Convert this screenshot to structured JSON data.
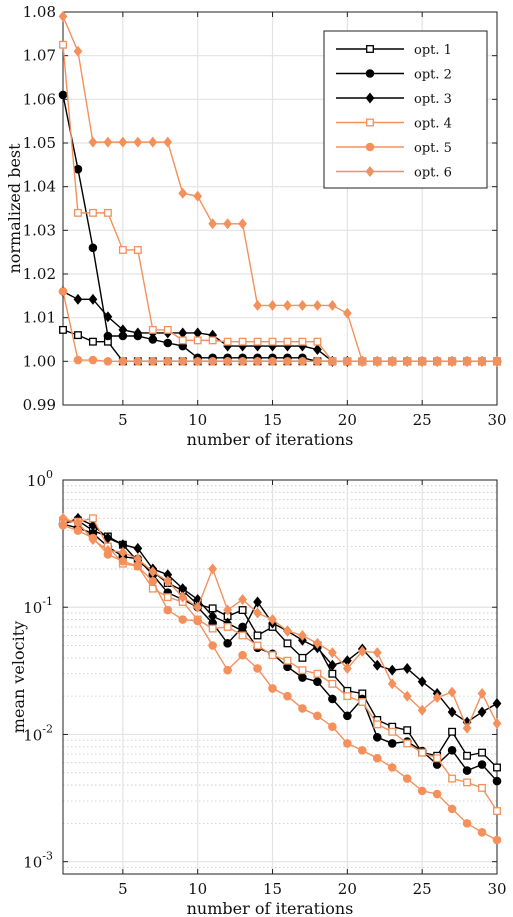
{
  "chart_data": [
    {
      "type": "line",
      "title": "",
      "xlabel": "number of iterations",
      "ylabel": "normalized best",
      "xlim": [
        1,
        30
      ],
      "ylim": [
        0.99,
        1.08
      ],
      "yscale": "linear",
      "xticks": [
        5,
        10,
        15,
        20,
        25,
        30
      ],
      "yticks": [
        0.99,
        1.0,
        1.01,
        1.02,
        1.03,
        1.04,
        1.05,
        1.06,
        1.07,
        1.08
      ],
      "ytick_labels": [
        "0.99",
        "1.00",
        "1.01",
        "1.02",
        "1.03",
        "1.04",
        "1.05",
        "1.06",
        "1.07",
        "1.08"
      ],
      "grid": true,
      "legend_position": "top-right",
      "x": [
        1,
        2,
        3,
        4,
        5,
        6,
        7,
        8,
        9,
        10,
        11,
        12,
        13,
        14,
        15,
        16,
        17,
        18,
        19,
        20,
        21,
        22,
        23,
        24,
        25,
        26,
        27,
        28,
        29,
        30
      ],
      "series": [
        {
          "name": "opt. 1",
          "color": "#000000",
          "marker": "square-open",
          "values": [
            1.0072,
            1.006,
            1.0045,
            1.0045,
            1.0,
            1.0,
            1.0,
            1.0,
            1.0,
            1.0,
            1.0,
            1.0,
            1.0,
            1.0,
            1.0,
            1.0,
            1.0,
            1.0,
            1.0,
            1.0,
            1.0,
            1.0,
            1.0,
            1.0,
            1.0,
            1.0,
            1.0,
            1.0,
            1.0,
            1.0
          ]
        },
        {
          "name": "opt. 2",
          "color": "#000000",
          "marker": "circle-filled",
          "values": [
            1.061,
            1.044,
            1.026,
            1.0058,
            1.0058,
            1.0058,
            1.005,
            1.0042,
            1.0035,
            1.0008,
            1.0008,
            1.0008,
            1.0008,
            1.0008,
            1.0008,
            1.0008,
            1.0008,
            1.0,
            1.0,
            1.0,
            1.0,
            1.0,
            1.0,
            1.0,
            1.0,
            1.0,
            1.0,
            1.0,
            1.0,
            1.0
          ]
        },
        {
          "name": "opt. 3",
          "color": "#000000",
          "marker": "diamond-filled",
          "values": [
            1.016,
            1.0142,
            1.0142,
            1.0102,
            1.0072,
            1.0065,
            1.0065,
            1.0065,
            1.0065,
            1.0065,
            1.006,
            1.0035,
            1.0035,
            1.0035,
            1.0035,
            1.0035,
            1.0035,
            1.0027,
            1.0,
            1.0,
            1.0,
            1.0,
            1.0,
            1.0,
            1.0,
            1.0,
            1.0,
            1.0,
            1.0,
            1.0
          ]
        },
        {
          "name": "opt. 4",
          "color": "#F4905C",
          "marker": "square-open",
          "values": [
            1.0725,
            1.034,
            1.034,
            1.034,
            1.0255,
            1.0255,
            1.0072,
            1.0072,
            1.0048,
            1.0048,
            1.0048,
            1.0045,
            1.0045,
            1.0045,
            1.0045,
            1.0045,
            1.0045,
            1.0045,
            1.0,
            1.0,
            1.0,
            1.0,
            1.0,
            1.0,
            1.0,
            1.0,
            1.0,
            1.0,
            1.0,
            1.0
          ]
        },
        {
          "name": "opt. 5",
          "color": "#F4905C",
          "marker": "circle-filled",
          "values": [
            1.016,
            1.0003,
            1.0003,
            1.0,
            1.0,
            1.0,
            1.0,
            1.0,
            1.0,
            1.0,
            1.0,
            1.0,
            1.0,
            1.0,
            1.0,
            1.0,
            1.0,
            1.0,
            1.0,
            1.0,
            1.0,
            1.0,
            1.0,
            1.0,
            1.0,
            1.0,
            1.0,
            1.0,
            1.0,
            1.0
          ]
        },
        {
          "name": "opt. 6",
          "color": "#F4905C",
          "marker": "diamond-filled",
          "values": [
            1.079,
            1.071,
            1.0502,
            1.0502,
            1.0502,
            1.0502,
            1.0502,
            1.0502,
            1.0385,
            1.0378,
            1.0315,
            1.0315,
            1.0315,
            1.0128,
            1.0128,
            1.0128,
            1.0128,
            1.0128,
            1.0128,
            1.011,
            1.0,
            1.0,
            1.0,
            1.0,
            1.0,
            1.0,
            1.0,
            1.0,
            1.0,
            1.0
          ]
        }
      ]
    },
    {
      "type": "line",
      "title": "",
      "xlabel": "number of iterations",
      "ylabel": "mean velocity",
      "xlim": [
        1,
        30
      ],
      "ylim": [
        0.0008,
        1
      ],
      "yscale": "log",
      "xticks": [
        5,
        10,
        15,
        20,
        25,
        30
      ],
      "yticks": [
        0.001,
        0.01,
        0.1,
        1
      ],
      "ytick_labels": [
        [
          "10",
          "-3"
        ],
        [
          "10",
          "-2"
        ],
        [
          "10",
          "-1"
        ],
        [
          "10",
          "0"
        ]
      ],
      "grid": true,
      "minor_grid": true,
      "legend_position": "none",
      "x": [
        1,
        2,
        3,
        4,
        5,
        6,
        7,
        8,
        9,
        10,
        11,
        12,
        13,
        14,
        15,
        16,
        17,
        18,
        19,
        20,
        21,
        22,
        23,
        24,
        25,
        26,
        27,
        28,
        29,
        30
      ],
      "series": [
        {
          "name": "opt. 1",
          "color": "#000000",
          "marker": "square-open",
          "values": [
            0.46,
            0.48,
            0.4,
            0.36,
            0.31,
            0.23,
            0.19,
            0.155,
            0.135,
            0.105,
            0.098,
            0.085,
            0.095,
            0.06,
            0.07,
            0.052,
            0.04,
            0.05,
            0.03,
            0.022,
            0.021,
            0.013,
            0.0115,
            0.0108,
            0.0072,
            0.0068,
            0.0105,
            0.0068,
            0.0072,
            0.0055
          ]
        },
        {
          "name": "opt. 2",
          "color": "#000000",
          "marker": "circle-filled",
          "values": [
            0.45,
            0.42,
            0.38,
            0.3,
            0.25,
            0.24,
            0.18,
            0.13,
            0.115,
            0.1,
            0.075,
            0.052,
            0.07,
            0.048,
            0.043,
            0.034,
            0.028,
            0.026,
            0.019,
            0.014,
            0.019,
            0.0095,
            0.0085,
            0.0088,
            0.0074,
            0.0058,
            0.0075,
            0.0052,
            0.0058,
            0.0043
          ]
        },
        {
          "name": "opt. 3",
          "color": "#000000",
          "marker": "diamond-filled",
          "values": [
            0.45,
            0.5,
            0.44,
            0.35,
            0.31,
            0.29,
            0.2,
            0.18,
            0.14,
            0.115,
            0.085,
            0.075,
            0.065,
            0.11,
            0.075,
            0.065,
            0.055,
            0.048,
            0.035,
            0.038,
            0.047,
            0.035,
            0.032,
            0.033,
            0.026,
            0.021,
            0.015,
            0.0125,
            0.015,
            0.0175
          ]
        },
        {
          "name": "opt. 4",
          "color": "#F4905C",
          "marker": "square-open",
          "values": [
            0.48,
            0.47,
            0.5,
            0.3,
            0.22,
            0.21,
            0.14,
            0.12,
            0.11,
            0.08,
            0.068,
            0.07,
            0.06,
            0.05,
            0.042,
            0.038,
            0.032,
            0.03,
            0.025,
            0.02,
            0.018,
            0.012,
            0.0105,
            0.0085,
            0.0072,
            0.0065,
            0.0045,
            0.0042,
            0.0038,
            0.0025
          ]
        },
        {
          "name": "opt. 5",
          "color": "#F4905C",
          "marker": "circle-filled",
          "values": [
            0.44,
            0.4,
            0.35,
            0.26,
            0.23,
            0.21,
            0.16,
            0.095,
            0.08,
            0.078,
            0.05,
            0.032,
            0.042,
            0.033,
            0.023,
            0.02,
            0.016,
            0.014,
            0.0115,
            0.0085,
            0.0075,
            0.0065,
            0.0055,
            0.0045,
            0.0036,
            0.0034,
            0.0026,
            0.002,
            0.0017,
            0.00148
          ]
        },
        {
          "name": "opt. 6",
          "color": "#F4905C",
          "marker": "diamond-filled",
          "values": [
            0.5,
            0.46,
            0.34,
            0.28,
            0.27,
            0.24,
            0.19,
            0.16,
            0.12,
            0.1,
            0.2,
            0.095,
            0.115,
            0.09,
            0.08,
            0.065,
            0.06,
            0.052,
            0.044,
            0.033,
            0.045,
            0.044,
            0.025,
            0.02,
            0.0155,
            0.0195,
            0.0215,
            0.0112,
            0.021,
            0.0122
          ]
        }
      ]
    }
  ]
}
